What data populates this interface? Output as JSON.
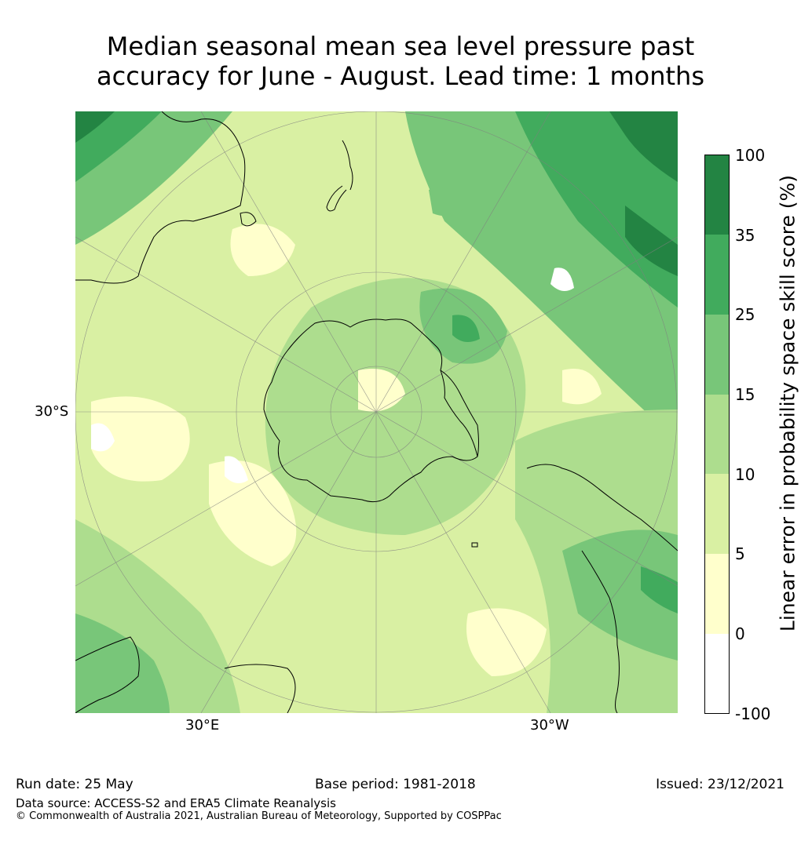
{
  "title_lines": [
    "Median seasonal mean sea level pressure past",
    "accuracy for June - August. Lead time: 1 months"
  ],
  "map": {
    "lat_label": "30°S",
    "lon_labels": {
      "east": "30°E",
      "west": "30°W"
    },
    "colors": {
      "ocean_base": "#d9efa3",
      "land_outline": "#000000",
      "graticule": "#7f7f7f"
    }
  },
  "colorbar": {
    "label": "Linear error in probability space skill score (%)",
    "ticks": [
      "100",
      "35",
      "25",
      "15",
      "10",
      "5",
      "0",
      "-100"
    ],
    "bins": [
      {
        "range": "35-100",
        "color": "#238443"
      },
      {
        "range": "25-35",
        "color": "#41ab5d"
      },
      {
        "range": "15-25",
        "color": "#78c679"
      },
      {
        "range": "10-15",
        "color": "#addd8e"
      },
      {
        "range": "5-10",
        "color": "#d9f0a3"
      },
      {
        "range": "0-5",
        "color": "#ffffcc"
      },
      {
        "range": "-100-0",
        "color": "#ffffff"
      }
    ]
  },
  "footer": {
    "run_date": "Run date: 25 May",
    "base_period": "Base period: 1981-2018",
    "issued": "Issued: 23/12/2021",
    "data_source": "Data source: ACCESS-S2 and ERA5 Climate Reanalysis",
    "copyright": "© Commonwealth of Australia 2021, Australian Bureau of Meteorology, Supported by COSPPac"
  }
}
